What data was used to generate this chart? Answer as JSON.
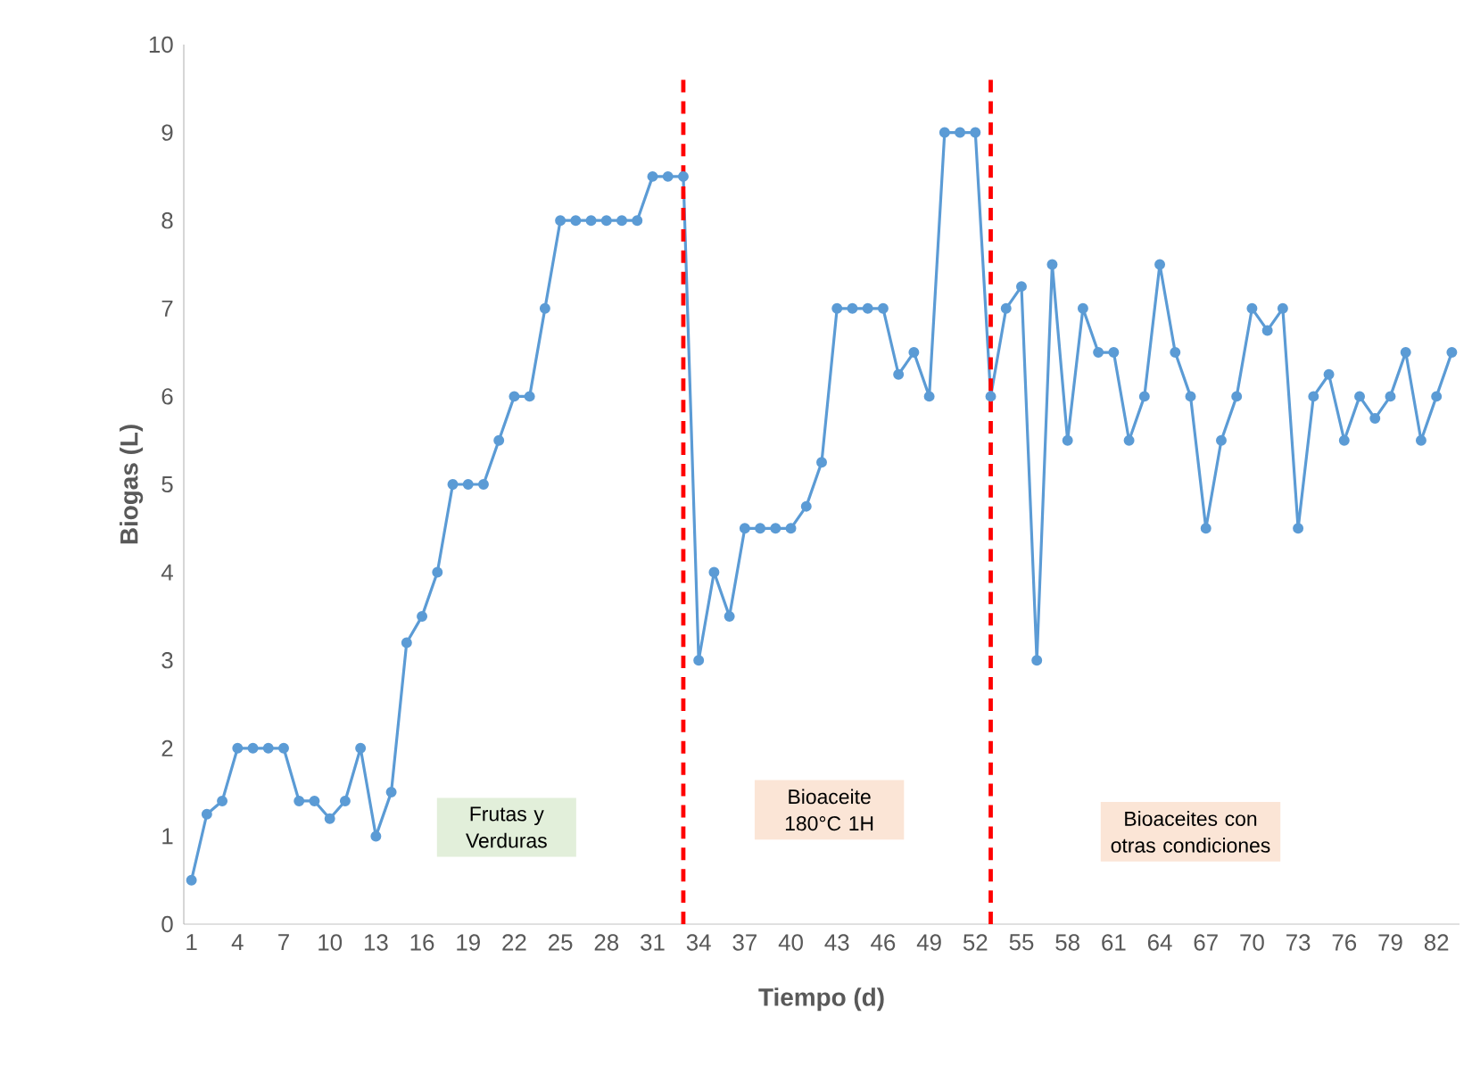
{
  "chart_data": {
    "type": "line",
    "xlabel": "Tiempo (d)",
    "ylabel": "Biogas (L)",
    "x": [
      1,
      2,
      3,
      4,
      5,
      6,
      7,
      8,
      9,
      10,
      11,
      12,
      13,
      14,
      15,
      16,
      17,
      18,
      19,
      20,
      21,
      22,
      23,
      24,
      25,
      26,
      27,
      28,
      29,
      30,
      31,
      32,
      33,
      34,
      35,
      36,
      37,
      38,
      39,
      40,
      41,
      42,
      43,
      44,
      45,
      46,
      47,
      48,
      49,
      50,
      51,
      52,
      53,
      54,
      55,
      56,
      57,
      58,
      59,
      60,
      61,
      62,
      63,
      64,
      65,
      66,
      67,
      68,
      69,
      70,
      71,
      72,
      73,
      74,
      75,
      76,
      77,
      78,
      79,
      80,
      81,
      82,
      83
    ],
    "series": [
      {
        "color": "#5b9bd5",
        "values": [
          0.5,
          1.25,
          1.4,
          2,
          2,
          2,
          2,
          1.4,
          1.4,
          1.2,
          1.4,
          2,
          1.0,
          1.5,
          3.2,
          3.5,
          4,
          5,
          5,
          5,
          5.5,
          6,
          6,
          7,
          8,
          8,
          8,
          8,
          8,
          8,
          8.5,
          8.5,
          8.5,
          3,
          4,
          3.5,
          4.5,
          4.5,
          4.5,
          4.5,
          4.75,
          5.25,
          7,
          7,
          7,
          7,
          6.25,
          6.5,
          6,
          9,
          9,
          9,
          6,
          7,
          7.25,
          3,
          7.5,
          5.5,
          7,
          6.5,
          6.5,
          5.5,
          6,
          7.5,
          6.5,
          6,
          4.5,
          5.5,
          6,
          7,
          6.75,
          7,
          4.5,
          6,
          6.25,
          5.5,
          6,
          5.75,
          6,
          6.5,
          5.5,
          6,
          6.5
        ]
      }
    ],
    "xlim": [
      0.5,
      83.5
    ],
    "xticks": [
      1,
      4,
      7,
      10,
      13,
      16,
      19,
      22,
      25,
      28,
      31,
      34,
      37,
      40,
      43,
      46,
      49,
      52,
      55,
      58,
      61,
      64,
      67,
      70,
      73,
      76,
      79,
      82
    ],
    "ylim": [
      0,
      10
    ],
    "yticks": [
      0,
      1,
      2,
      3,
      4,
      5,
      6,
      7,
      8,
      9,
      10
    ],
    "marker": "circle",
    "line_style": "solid",
    "ref_lines": [
      {
        "axis": "x",
        "value": 33,
        "color": "#ff0000",
        "line_style": "dashed"
      },
      {
        "axis": "x",
        "value": 53,
        "color": "#ff0000",
        "line_style": "dashed"
      }
    ],
    "annotations": [
      "Frutas y Verduras",
      "Bioaceite 180°C 1H",
      "Bioaceites con otras condiciones"
    ]
  }
}
